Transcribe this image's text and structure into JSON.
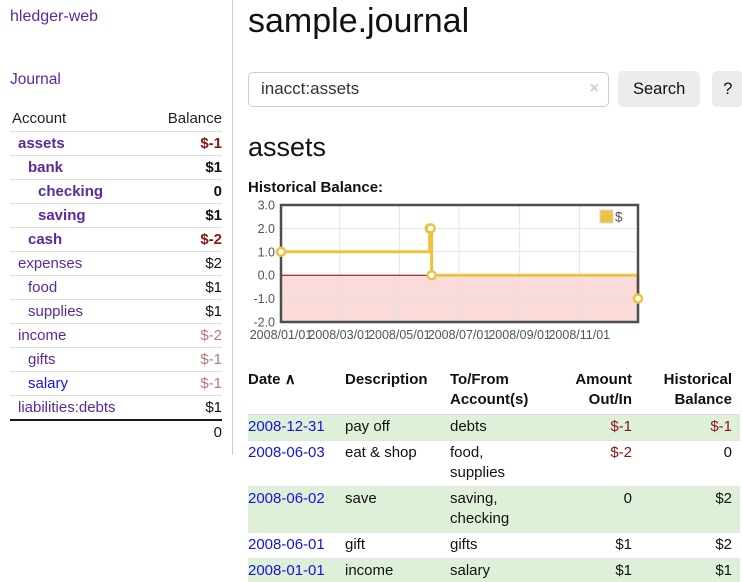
{
  "app": {
    "brand": "hledger-web",
    "nav_journal": "Journal"
  },
  "sidebar": {
    "headers": {
      "account": "Account",
      "balance": "Balance"
    },
    "accounts": [
      {
        "name": "assets",
        "balance": "$-1"
      },
      {
        "name": "bank",
        "balance": "$1"
      },
      {
        "name": "checking",
        "balance": "0"
      },
      {
        "name": "saving",
        "balance": "$1"
      },
      {
        "name": "cash",
        "balance": "$-2"
      },
      {
        "name": "expenses",
        "balance": "$2"
      },
      {
        "name": "food",
        "balance": "$1"
      },
      {
        "name": "supplies",
        "balance": "$1"
      },
      {
        "name": "income",
        "balance": "$-2"
      },
      {
        "name": "gifts",
        "balance": "$-1"
      },
      {
        "name": "salary",
        "balance": "$-1"
      },
      {
        "name": "liabilities:debts",
        "balance": "$1"
      }
    ],
    "total": "0"
  },
  "header": {
    "title": "sample.journal"
  },
  "search": {
    "value": "inacct:assets",
    "clear_icon": "×",
    "button": "Search",
    "help_button": "?"
  },
  "account_page": {
    "title": "assets",
    "chart_label": "Historical Balance:"
  },
  "chart_data": {
    "type": "line",
    "title": "Historical Balance:",
    "x_range": [
      "2008-01-01",
      "2008-12-31"
    ],
    "ylim": [
      -2,
      3
    ],
    "y_ticks": [
      "3.0",
      "2.0",
      "1.0",
      "0.0",
      "-1.0",
      "-2.0"
    ],
    "x_ticks": [
      "2008/01/01",
      "2008/03/01",
      "2008/05/01",
      "2008/07/01",
      "2008/09/01",
      "2008/11/01"
    ],
    "grid": true,
    "zero_line_color": "#8b0000",
    "negative_region_fill": "#fbdada",
    "legend": {
      "position": "top-right"
    },
    "series": [
      {
        "name": "$",
        "color": "#edc240",
        "step": true,
        "points": [
          [
            "2008-01-01",
            1
          ],
          [
            "2008-06-01",
            2
          ],
          [
            "2008-06-02",
            2
          ],
          [
            "2008-06-03",
            0
          ],
          [
            "2008-12-31",
            -1
          ]
        ]
      }
    ]
  },
  "transactions": {
    "headers": {
      "date": "Date",
      "sort_icon": "∧",
      "description": "Description",
      "accounts": "To/From Account(s)",
      "amount": "Amount Out/In",
      "balance": "Historical Balance"
    },
    "rows": [
      {
        "date": "2008-12-31",
        "description": "pay off",
        "accounts": "debts",
        "amount": "$-1",
        "balance": "$-1"
      },
      {
        "date": "2008-06-03",
        "description": "eat & shop",
        "accounts": "food, supplies",
        "amount": "$-2",
        "balance": "0"
      },
      {
        "date": "2008-06-02",
        "description": "save",
        "accounts": "saving, checking",
        "amount": "0",
        "balance": "$2"
      },
      {
        "date": "2008-06-01",
        "description": "gift",
        "accounts": "gifts",
        "amount": "$1",
        "balance": "$2"
      },
      {
        "date": "2008-01-01",
        "description": "income",
        "accounts": "salary",
        "amount": "$1",
        "balance": "$1"
      }
    ]
  }
}
